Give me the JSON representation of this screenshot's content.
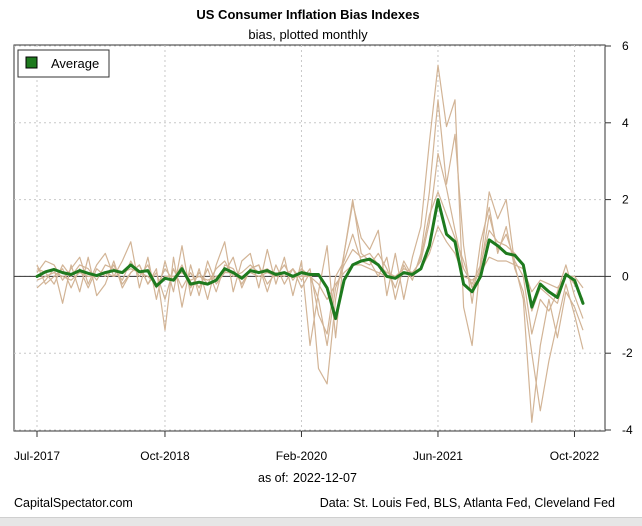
{
  "chart_data": {
    "type": "line",
    "title": "US Consumer Inflation Bias Indexes",
    "subtitle": "bias, plotted monthly",
    "ylim": [
      -4,
      6
    ],
    "y_ticks": [
      6,
      4,
      2,
      0,
      -2,
      -4
    ],
    "y_tick_labels": [
      "6",
      "4",
      "2",
      "0",
      "-2",
      "-4"
    ],
    "x_ticks": [
      {
        "label": "Jul-2017",
        "index": 0
      },
      {
        "label": "Oct-2018",
        "index": 15
      },
      {
        "label": "Feb-2020",
        "index": 31
      },
      {
        "label": "Jun-2021",
        "index": 47
      },
      {
        "label": "Oct-2022",
        "index": 63
      }
    ],
    "grid": true,
    "legend_position": "top-left",
    "legend": [
      "Average"
    ],
    "average_color": "#1e7a1e",
    "component_color": "#d2b496",
    "reference_line_value": 0,
    "series": [
      {
        "name": "Average",
        "values": [
          0.0,
          0.12,
          0.18,
          0.1,
          0.05,
          0.15,
          0.08,
          0.02,
          0.1,
          0.15,
          0.1,
          0.3,
          0.12,
          0.15,
          -0.25,
          -0.05,
          -0.1,
          0.2,
          -0.2,
          -0.15,
          -0.2,
          -0.1,
          0.2,
          0.1,
          -0.05,
          0.15,
          0.1,
          0.15,
          0.05,
          0.1,
          0.0,
          0.1,
          0.05,
          0.05,
          -0.3,
          -1.1,
          -0.1,
          0.3,
          0.4,
          0.45,
          0.3,
          0.0,
          -0.05,
          0.1,
          0.05,
          0.2,
          0.8,
          2.0,
          1.1,
          0.9,
          -0.2,
          -0.4,
          0.0,
          0.95,
          0.8,
          0.6,
          0.55,
          0.3,
          -0.8,
          -0.2,
          -0.4,
          -0.55,
          0.05,
          -0.1,
          -0.7
        ]
      },
      {
        "values": [
          0.1,
          0.4,
          0.3,
          -0.1,
          0.2,
          0.5,
          -0.2,
          0.3,
          0.6,
          0.0,
          0.4,
          0.9,
          -0.3,
          0.5,
          -0.6,
          0.4,
          -0.4,
          0.8,
          -0.5,
          0.2,
          -0.6,
          0.3,
          0.9,
          -0.4,
          0.4,
          0.6,
          -0.3,
          0.7,
          -0.2,
          0.5,
          -0.5,
          0.4,
          -1.8,
          -0.4,
          0.8,
          -1.6,
          0.6,
          1.9,
          1.0,
          0.7,
          1.2,
          -0.5,
          0.6,
          -0.6,
          0.5,
          1.3,
          3.5,
          5.5,
          3.9,
          4.6,
          -0.8,
          -1.8,
          0.4,
          2.2,
          1.5,
          2.0,
          0.3,
          -0.6,
          -3.8,
          -1.8,
          -0.6,
          -1.6,
          -0.4,
          -0.8,
          -1.4
        ]
      },
      {
        "values": [
          -0.3,
          -0.1,
          0.2,
          -0.7,
          0.3,
          -0.4,
          0.5,
          -0.5,
          -0.2,
          0.4,
          -0.3,
          0.1,
          0.3,
          -0.2,
          0.2,
          -1.4,
          0.5,
          -0.8,
          0.3,
          -0.5,
          0.4,
          -0.2,
          0.1,
          0.5,
          -0.3,
          0.2,
          0.3,
          -0.4,
          0.3,
          -0.2,
          0.2,
          -0.3,
          0.1,
          -2.4,
          -2.8,
          -0.6,
          0.6,
          2.0,
          0.6,
          0.4,
          0.0,
          0.5,
          -0.6,
          0.3,
          -0.1,
          0.6,
          2.2,
          4.6,
          2.4,
          3.7,
          0.8,
          -0.7,
          0.9,
          1.8,
          0.6,
          1.3,
          0.2,
          -0.4,
          -2.0,
          -3.5,
          -2.2,
          -1.2,
          -0.2,
          -1.0,
          -1.9
        ]
      },
      {
        "values": [
          0.2,
          0.1,
          -0.2,
          0.3,
          0.0,
          0.3,
          0.2,
          -0.1,
          0.3,
          0.2,
          -0.1,
          0.4,
          0.0,
          0.3,
          -0.3,
          0.2,
          -0.1,
          0.3,
          -0.3,
          0.1,
          -0.2,
          0.2,
          0.4,
          0.0,
          0.1,
          0.3,
          0.1,
          0.2,
          0.0,
          0.3,
          -0.1,
          0.2,
          0.0,
          -0.6,
          -1.8,
          -0.3,
          0.3,
          0.7,
          0.5,
          0.6,
          0.3,
          0.1,
          0.0,
          0.2,
          0.1,
          0.4,
          1.4,
          3.2,
          2.3,
          1.2,
          0.2,
          -0.2,
          0.3,
          1.2,
          0.9,
          0.8,
          0.6,
          0.3,
          -0.9,
          -0.3,
          -0.5,
          -0.7,
          0.1,
          -0.2,
          -0.6
        ]
      },
      {
        "values": [
          -0.1,
          0.0,
          0.1,
          0.0,
          -0.1,
          0.1,
          0.0,
          0.0,
          0.1,
          0.0,
          0.1,
          0.2,
          0.1,
          0.0,
          -0.2,
          0.0,
          0.0,
          0.1,
          -0.1,
          0.0,
          -0.1,
          0.0,
          0.1,
          0.1,
          0.0,
          0.1,
          0.0,
          0.1,
          0.0,
          0.1,
          0.0,
          0.0,
          0.0,
          -0.2,
          -0.6,
          -0.2,
          0.1,
          0.3,
          0.3,
          0.2,
          0.1,
          0.0,
          0.0,
          0.1,
          0.1,
          0.2,
          0.6,
          1.3,
          0.9,
          0.6,
          0.0,
          -0.1,
          0.1,
          0.5,
          0.4,
          0.4,
          0.3,
          0.2,
          -0.4,
          -0.1,
          -0.2,
          -0.3,
          0.0,
          0.0,
          -0.3
        ]
      },
      {
        "values": [
          0.3,
          -0.2,
          0.0,
          0.2,
          -0.3,
          0.2,
          -0.3,
          0.2,
          0.0,
          0.3,
          -0.2,
          0.1,
          0.3,
          -0.2,
          0.1,
          -0.6,
          0.2,
          -0.3,
          0.1,
          -0.3,
          0.2,
          -0.4,
          0.3,
          0.2,
          -0.2,
          0.2,
          0.3,
          -0.2,
          0.1,
          0.0,
          0.2,
          -0.1,
          0.2,
          -1.0,
          -1.5,
          0.0,
          0.4,
          1.1,
          0.4,
          0.3,
          0.6,
          0.2,
          -0.3,
          0.4,
          0.0,
          0.5,
          1.6,
          2.2,
          1.6,
          1.0,
          0.4,
          -0.3,
          0.2,
          1.6,
          0.7,
          1.1,
          0.4,
          0.0,
          -1.5,
          -0.6,
          -0.9,
          -0.4,
          0.3,
          -0.5,
          -1.1
        ]
      }
    ]
  },
  "footer": {
    "as_of_label": "as of:",
    "as_of_date": "2022-12-07",
    "source_left": "CapitalSpectator.com",
    "source_right": "Data: St. Louis Fed, BLS, Atlanta Fed, Cleveland Fed"
  }
}
